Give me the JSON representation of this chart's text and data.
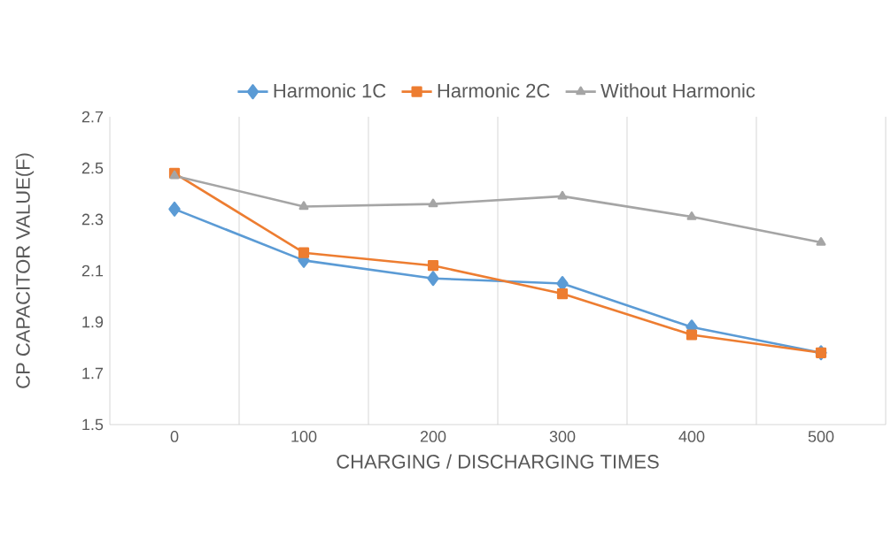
{
  "chart_data": {
    "type": "line",
    "xlabel": "CHARGING / DISCHARGING TIMES",
    "ylabel": "CP CAPACITOR VALUE(F)",
    "categories": [
      "0",
      "100",
      "200",
      "300",
      "400",
      "500"
    ],
    "series": [
      {
        "name": "Harmonic 1C",
        "color": "#5b9bd5",
        "marker": "diamond",
        "values": [
          2.34,
          2.14,
          2.07,
          2.05,
          1.88,
          1.78
        ]
      },
      {
        "name": "Harmonic 2C",
        "color": "#ed7d31",
        "marker": "square",
        "values": [
          2.48,
          2.17,
          2.12,
          2.01,
          1.85,
          1.78
        ]
      },
      {
        "name": "Without Harmonic",
        "color": "#a5a5a5",
        "marker": "triangle",
        "values": [
          2.47,
          2.35,
          2.36,
          2.39,
          2.31,
          2.21
        ]
      }
    ],
    "ylim": [
      1.5,
      2.7
    ],
    "yticks": [
      1.5,
      1.7,
      1.9,
      2.1,
      2.3,
      2.5,
      2.7
    ],
    "grid": "x",
    "legend": "top",
    "line_style": "solid"
  }
}
